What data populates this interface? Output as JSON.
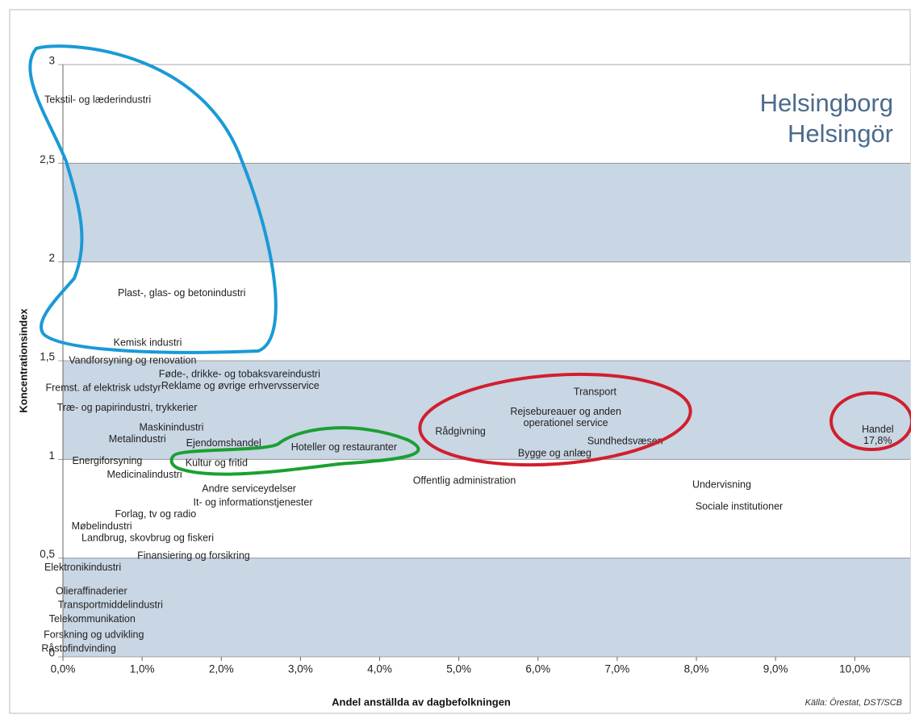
{
  "chart_data": {
    "type": "scatter",
    "title": [
      "Helsingborg",
      "Helsingör"
    ],
    "x_label": "Andel anställda av dagbefolkningen",
    "y_label": "Koncentrationsindex",
    "source": "Källa: Örestat, DST/SCB",
    "band_color": "#c9d6e4",
    "xlim": [
      0,
      10.7
    ],
    "ylim": [
      0,
      3
    ],
    "xticks": [
      {
        "value": 0,
        "label": "0,0%"
      },
      {
        "value": 1,
        "label": "1,0%"
      },
      {
        "value": 2,
        "label": "2,0%"
      },
      {
        "value": 3,
        "label": "3,0%"
      },
      {
        "value": 4,
        "label": "4,0%"
      },
      {
        "value": 5,
        "label": "5,0%"
      },
      {
        "value": 6,
        "label": "6,0%"
      },
      {
        "value": 7,
        "label": "7,0%"
      },
      {
        "value": 8,
        "label": "8,0%"
      },
      {
        "value": 9,
        "label": "9,0%"
      },
      {
        "value": 10,
        "label": "10,0%"
      }
    ],
    "yticks": [
      0,
      {
        "value": 0.5,
        "label": "0,5"
      },
      1,
      {
        "value": 1.5,
        "label": "1,5"
      },
      2,
      {
        "value": 2.5,
        "label": "2,5"
      },
      3
    ],
    "labels": [
      "Tekstil- og læderindustri",
      "Plast-, glas- og betonindustri",
      "Kemisk industri",
      "Vandforsyning og renovation",
      "Føde-, drikke- og tobaksvareindustri",
      "Fremst. af elektrisk udstyr",
      "Reklame og øvrige erhvervsservice",
      "Træ- og papirindustri, trykkerier",
      "Maskinindustri",
      "Metalindustri",
      "Ejendomshandel",
      "Hoteller og restauranter",
      "Energiforsyning",
      "Kultur og fritid",
      "Medicinalindustri",
      "Offentlig administration",
      "Andre serviceydelser",
      "It- og informationstjenester",
      "Forlag, tv og radio",
      "Møbelindustri",
      "Landbrug, skovbrug og fiskeri",
      "Finansiering og forsikring",
      "Elektronikindustri",
      "Olieraffinaderier",
      "Transportmiddelindustri",
      "Telekommunikation",
      "Forskning og udvikling",
      "Råstofindvinding",
      "Transport",
      [
        "Rejsebureauer og anden",
        "operationel service"
      ],
      "Rådgivning",
      "Bygge og anlæg",
      "Sundhedsvæsen",
      [
        "Handel",
        "17,8%"
      ],
      "Undervisning",
      "Sociale institutioner"
    ],
    "x": [
      0.44,
      1.5,
      1.07,
      0.88,
      2.23,
      0.51,
      2.24,
      0.81,
      1.37,
      0.94,
      2.03,
      3.55,
      0.56,
      1.94,
      1.03,
      5.07,
      2.35,
      2.4,
      1.17,
      0.49,
      1.07,
      1.65,
      0.25,
      0.36,
      0.6,
      0.37,
      0.39,
      0.2,
      6.72,
      6.35,
      5.02,
      6.21,
      7.1,
      10.29,
      8.32,
      8.54
    ],
    "values": [
      2.82,
      1.84,
      1.59,
      1.5,
      1.43,
      1.36,
      1.37,
      1.26,
      1.16,
      1.1,
      1.08,
      1.06,
      0.99,
      0.98,
      0.92,
      0.89,
      0.85,
      0.78,
      0.72,
      0.66,
      0.6,
      0.51,
      0.45,
      0.33,
      0.26,
      0.19,
      0.11,
      0.04,
      1.34,
      1.21,
      1.14,
      1.03,
      1.09,
      1.12,
      0.87,
      0.76
    ]
  }
}
